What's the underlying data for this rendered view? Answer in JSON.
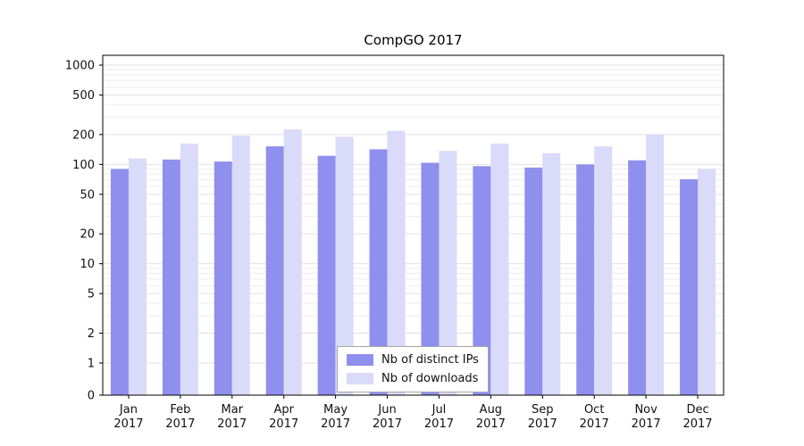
{
  "title": "CompGO 2017",
  "colors": {
    "bar_ips": "#8f8fee",
    "bar_downloads": "#dadaf9",
    "grid_major": "#e2e2e2",
    "grid_minor": "#ededed",
    "axis": "#000000",
    "legend_border": "#a6a6a6"
  },
  "legend": {
    "items": [
      {
        "label": "Nb of distinct IPs",
        "series": "ips"
      },
      {
        "label": "Nb of downloads",
        "series": "downloads"
      }
    ]
  },
  "chart_data": {
    "type": "bar",
    "title": "CompGO 2017",
    "scale": "symlog",
    "xlabel": "",
    "ylabel": "",
    "ylim": [
      0,
      1300
    ],
    "grid": true,
    "legend_position": "lower center",
    "categories": [
      "Jan 2017",
      "Feb 2017",
      "Mar 2017",
      "Apr 2017",
      "May 2017",
      "Jun 2017",
      "Jul 2017",
      "Aug 2017",
      "Sep 2017",
      "Oct 2017",
      "Nov 2017",
      "Dec 2017"
    ],
    "yticks": [
      1000,
      500,
      200,
      100,
      50,
      20,
      10,
      5,
      2,
      1,
      0
    ],
    "series": [
      {
        "name": "Nb of distinct IPs",
        "values": [
          90,
          112,
          107,
          152,
          122,
          142,
          104,
          96,
          93,
          100,
          110,
          71
        ]
      },
      {
        "name": "Nb of downloads",
        "values": [
          115,
          162,
          195,
          225,
          190,
          218,
          137,
          162,
          130,
          152,
          200,
          90
        ]
      }
    ]
  }
}
